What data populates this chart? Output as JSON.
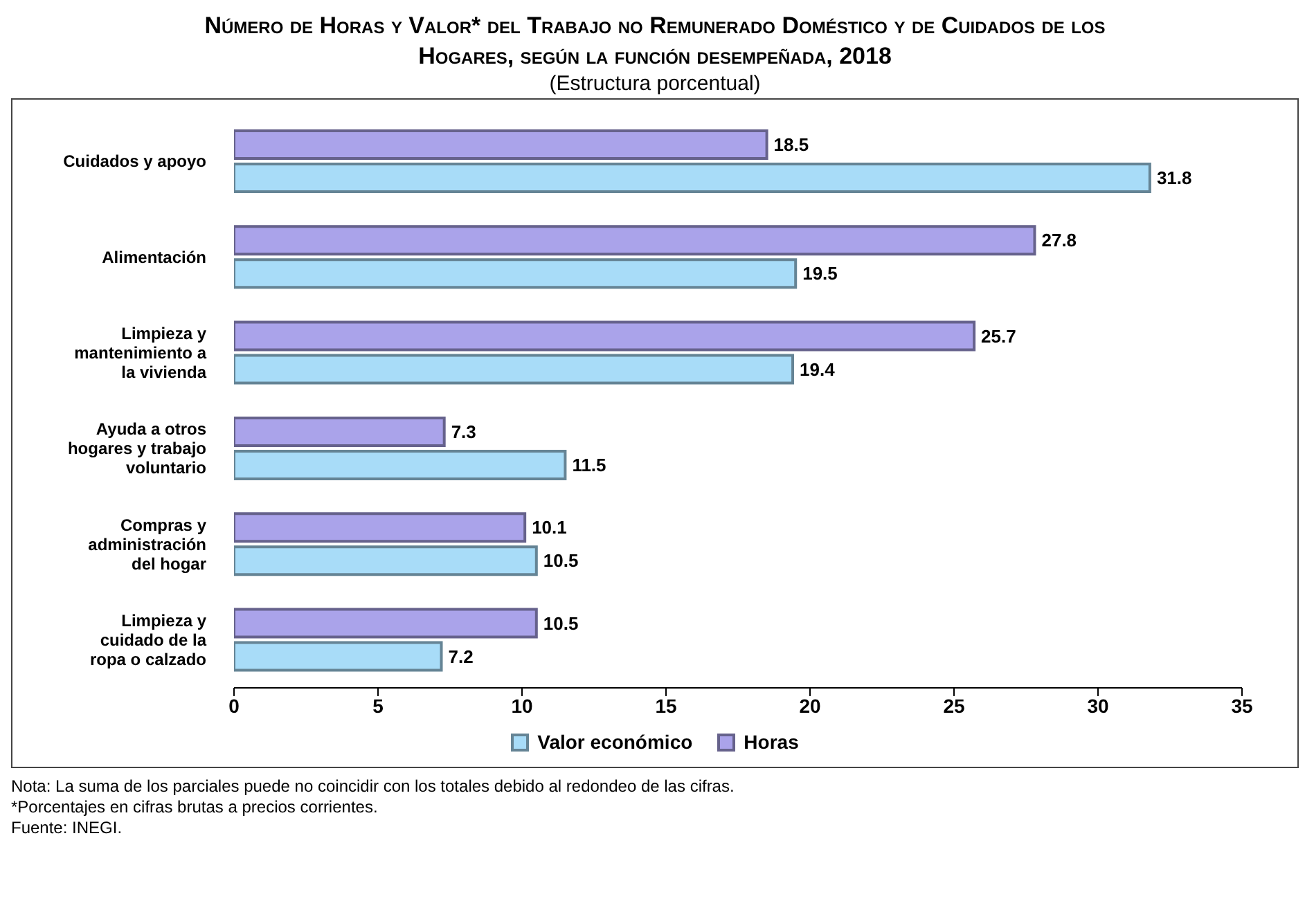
{
  "chart_data": {
    "type": "bar",
    "orientation": "horizontal",
    "title": "Número de Horas y Valor* del Trabajo no Remunerado Doméstico y de Cuidados de los Hogares, según la función desempeñada, 2018",
    "subtitle": "(Estructura porcentual)",
    "categories": [
      "Cuidados y apoyo",
      "Alimentación",
      "Limpieza y mantenimiento a la vivienda",
      "Ayuda a otros hogares y trabajo voluntario",
      "Compras y administración del hogar",
      "Limpieza y cuidado de la ropa o calzado"
    ],
    "series": [
      {
        "name": "Horas",
        "color": "#aaa3ea",
        "values": [
          18.5,
          27.8,
          25.7,
          7.3,
          10.1,
          10.5
        ]
      },
      {
        "name": "Valor económico",
        "color": "#a8dcf8",
        "values": [
          31.8,
          19.5,
          19.4,
          11.5,
          10.5,
          7.2
        ]
      }
    ],
    "xlim": [
      0,
      35
    ],
    "xticks": [
      0,
      5,
      10,
      15,
      20,
      25,
      30,
      35
    ],
    "legend": "bottom",
    "data_labels": true,
    "annotations": [
      "Nota: La suma de los parciales puede no coincidir con los totales debido al redondeo de las cifras.",
      "*Porcentajes en cifras brutas a precios corrientes.",
      "Fuente: INEGI."
    ]
  }
}
